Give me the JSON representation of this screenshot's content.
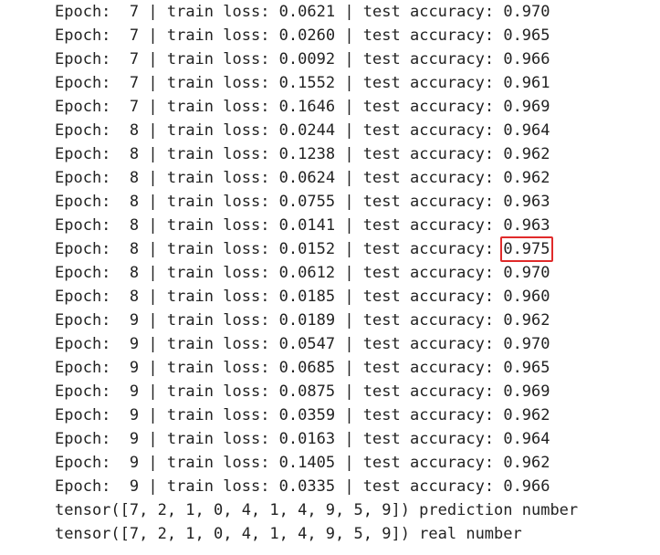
{
  "log": {
    "rows": [
      {
        "epoch": "7",
        "loss": "0.0621",
        "acc": "0.970",
        "highlight": false
      },
      {
        "epoch": "7",
        "loss": "0.0260",
        "acc": "0.965",
        "highlight": false
      },
      {
        "epoch": "7",
        "loss": "0.0092",
        "acc": "0.966",
        "highlight": false
      },
      {
        "epoch": "7",
        "loss": "0.1552",
        "acc": "0.961",
        "highlight": false
      },
      {
        "epoch": "7",
        "loss": "0.1646",
        "acc": "0.969",
        "highlight": false
      },
      {
        "epoch": "8",
        "loss": "0.0244",
        "acc": "0.964",
        "highlight": false
      },
      {
        "epoch": "8",
        "loss": "0.1238",
        "acc": "0.962",
        "highlight": false
      },
      {
        "epoch": "8",
        "loss": "0.0624",
        "acc": "0.962",
        "highlight": false
      },
      {
        "epoch": "8",
        "loss": "0.0755",
        "acc": "0.963",
        "highlight": false
      },
      {
        "epoch": "8",
        "loss": "0.0141",
        "acc": "0.963",
        "highlight": false
      },
      {
        "epoch": "8",
        "loss": "0.0152",
        "acc": "0.975",
        "highlight": true
      },
      {
        "epoch": "8",
        "loss": "0.0612",
        "acc": "0.970",
        "highlight": false
      },
      {
        "epoch": "8",
        "loss": "0.0185",
        "acc": "0.960",
        "highlight": false
      },
      {
        "epoch": "9",
        "loss": "0.0189",
        "acc": "0.962",
        "highlight": false
      },
      {
        "epoch": "9",
        "loss": "0.0547",
        "acc": "0.970",
        "highlight": false
      },
      {
        "epoch": "9",
        "loss": "0.0685",
        "acc": "0.965",
        "highlight": false
      },
      {
        "epoch": "9",
        "loss": "0.0875",
        "acc": "0.969",
        "highlight": false
      },
      {
        "epoch": "9",
        "loss": "0.0359",
        "acc": "0.962",
        "highlight": false
      },
      {
        "epoch": "9",
        "loss": "0.0163",
        "acc": "0.964",
        "highlight": false
      },
      {
        "epoch": "9",
        "loss": "0.1405",
        "acc": "0.962",
        "highlight": false
      },
      {
        "epoch": "9",
        "loss": "0.0335",
        "acc": "0.966",
        "highlight": false
      }
    ],
    "prefix_epoch": "Epoch:  ",
    "sep_loss": " | train loss: ",
    "sep_acc": " | test accuracy: ",
    "tensor_prediction": "tensor([7, 2, 1, 0, 4, 1, 4, 9, 5, 9]) prediction number",
    "tensor_real": "tensor([7, 2, 1, 0, 4, 1, 4, 9, 5, 9]) real number",
    "highlight_color": "#e02b2b"
  }
}
